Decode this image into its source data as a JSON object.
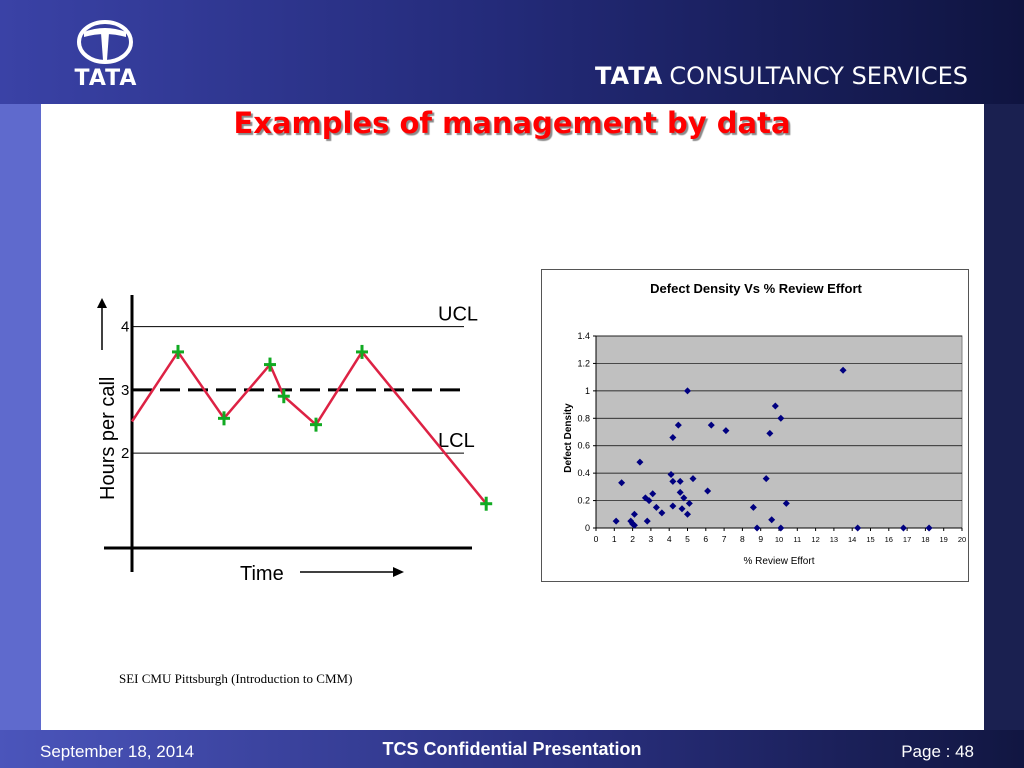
{
  "header": {
    "logo_word": "TATA",
    "company_bold": "TATA",
    "company_rest": "CONSULTANCY SERVICES"
  },
  "slide": {
    "title": "Examples of management by data",
    "caption": "SEI CMU Pittsburgh (Introduction to CMM)"
  },
  "footer": {
    "date": "September 18, 2014",
    "center": "TCS Confidential Presentation",
    "page": "Page : 48"
  },
  "colors": {
    "title": "#ff0000",
    "control_line": "#dd2244",
    "control_marker": "#11aa22",
    "scatter_marker": "#000080",
    "plot_bg": "#c0c0c0"
  },
  "chart_data": [
    {
      "type": "line",
      "ylabel": "Hours per call",
      "xlabel": "Time",
      "yticks": [
        "4",
        "3",
        "2"
      ],
      "ucl_label": "UCL",
      "lcl_label": "LCL",
      "ucl": 4,
      "center": 3,
      "lcl": 2,
      "ylim": [
        0.5,
        4.5
      ],
      "points": [
        {
          "x": 0,
          "y": 2.5,
          "marker": false
        },
        {
          "x": 1,
          "y": 3.6,
          "marker": true
        },
        {
          "x": 2,
          "y": 2.55,
          "marker": true
        },
        {
          "x": 3,
          "y": 3.4,
          "marker": true
        },
        {
          "x": 3.3,
          "y": 2.9,
          "marker": true
        },
        {
          "x": 4,
          "y": 2.45,
          "marker": true
        },
        {
          "x": 5,
          "y": 3.6,
          "marker": true
        },
        {
          "x": 7.7,
          "y": 1.2,
          "marker": true
        }
      ]
    },
    {
      "type": "scatter",
      "title": "Defect Density Vs   % Review Effort",
      "xlabel": "% Review  Effort",
      "ylabel": "Defect Density",
      "xlim": [
        0,
        20
      ],
      "ylim": [
        0,
        1.4
      ],
      "xticks": [
        0,
        1,
        2,
        3,
        4,
        5,
        6,
        7,
        8,
        9,
        10,
        11,
        12,
        13,
        14,
        15,
        16,
        17,
        18,
        19,
        20
      ],
      "yticks": [
        "0",
        "0.2",
        "0.4",
        "0.6",
        "0.8",
        "1",
        "1.2",
        "1.4"
      ],
      "grid": true,
      "points": [
        [
          1.1,
          0.05
        ],
        [
          1.4,
          0.33
        ],
        [
          1.9,
          0.05
        ],
        [
          2.0,
          0.03
        ],
        [
          2.1,
          0.1
        ],
        [
          2.1,
          0.02
        ],
        [
          2.4,
          0.48
        ],
        [
          2.7,
          0.22
        ],
        [
          2.8,
          0.05
        ],
        [
          2.9,
          0.2
        ],
        [
          3.1,
          0.25
        ],
        [
          3.3,
          0.15
        ],
        [
          3.6,
          0.11
        ],
        [
          4.1,
          0.39
        ],
        [
          4.2,
          0.34
        ],
        [
          4.2,
          0.16
        ],
        [
          4.2,
          0.66
        ],
        [
          4.5,
          0.75
        ],
        [
          4.6,
          0.34
        ],
        [
          4.6,
          0.26
        ],
        [
          4.7,
          0.14
        ],
        [
          4.8,
          0.22
        ],
        [
          5.0,
          1.0
        ],
        [
          5.0,
          0.1
        ],
        [
          5.1,
          0.18
        ],
        [
          5.3,
          0.36
        ],
        [
          6.1,
          0.27
        ],
        [
          6.3,
          0.75
        ],
        [
          7.1,
          0.71
        ],
        [
          8.6,
          0.15
        ],
        [
          8.8,
          0.0
        ],
        [
          9.3,
          0.36
        ],
        [
          9.5,
          0.69
        ],
        [
          9.6,
          0.06
        ],
        [
          9.8,
          0.89
        ],
        [
          10.1,
          0.8
        ],
        [
          10.1,
          0.0
        ],
        [
          10.4,
          0.18
        ],
        [
          13.5,
          1.15
        ],
        [
          14.3,
          0.0
        ],
        [
          16.8,
          0.0
        ],
        [
          18.2,
          0.0
        ]
      ]
    }
  ]
}
